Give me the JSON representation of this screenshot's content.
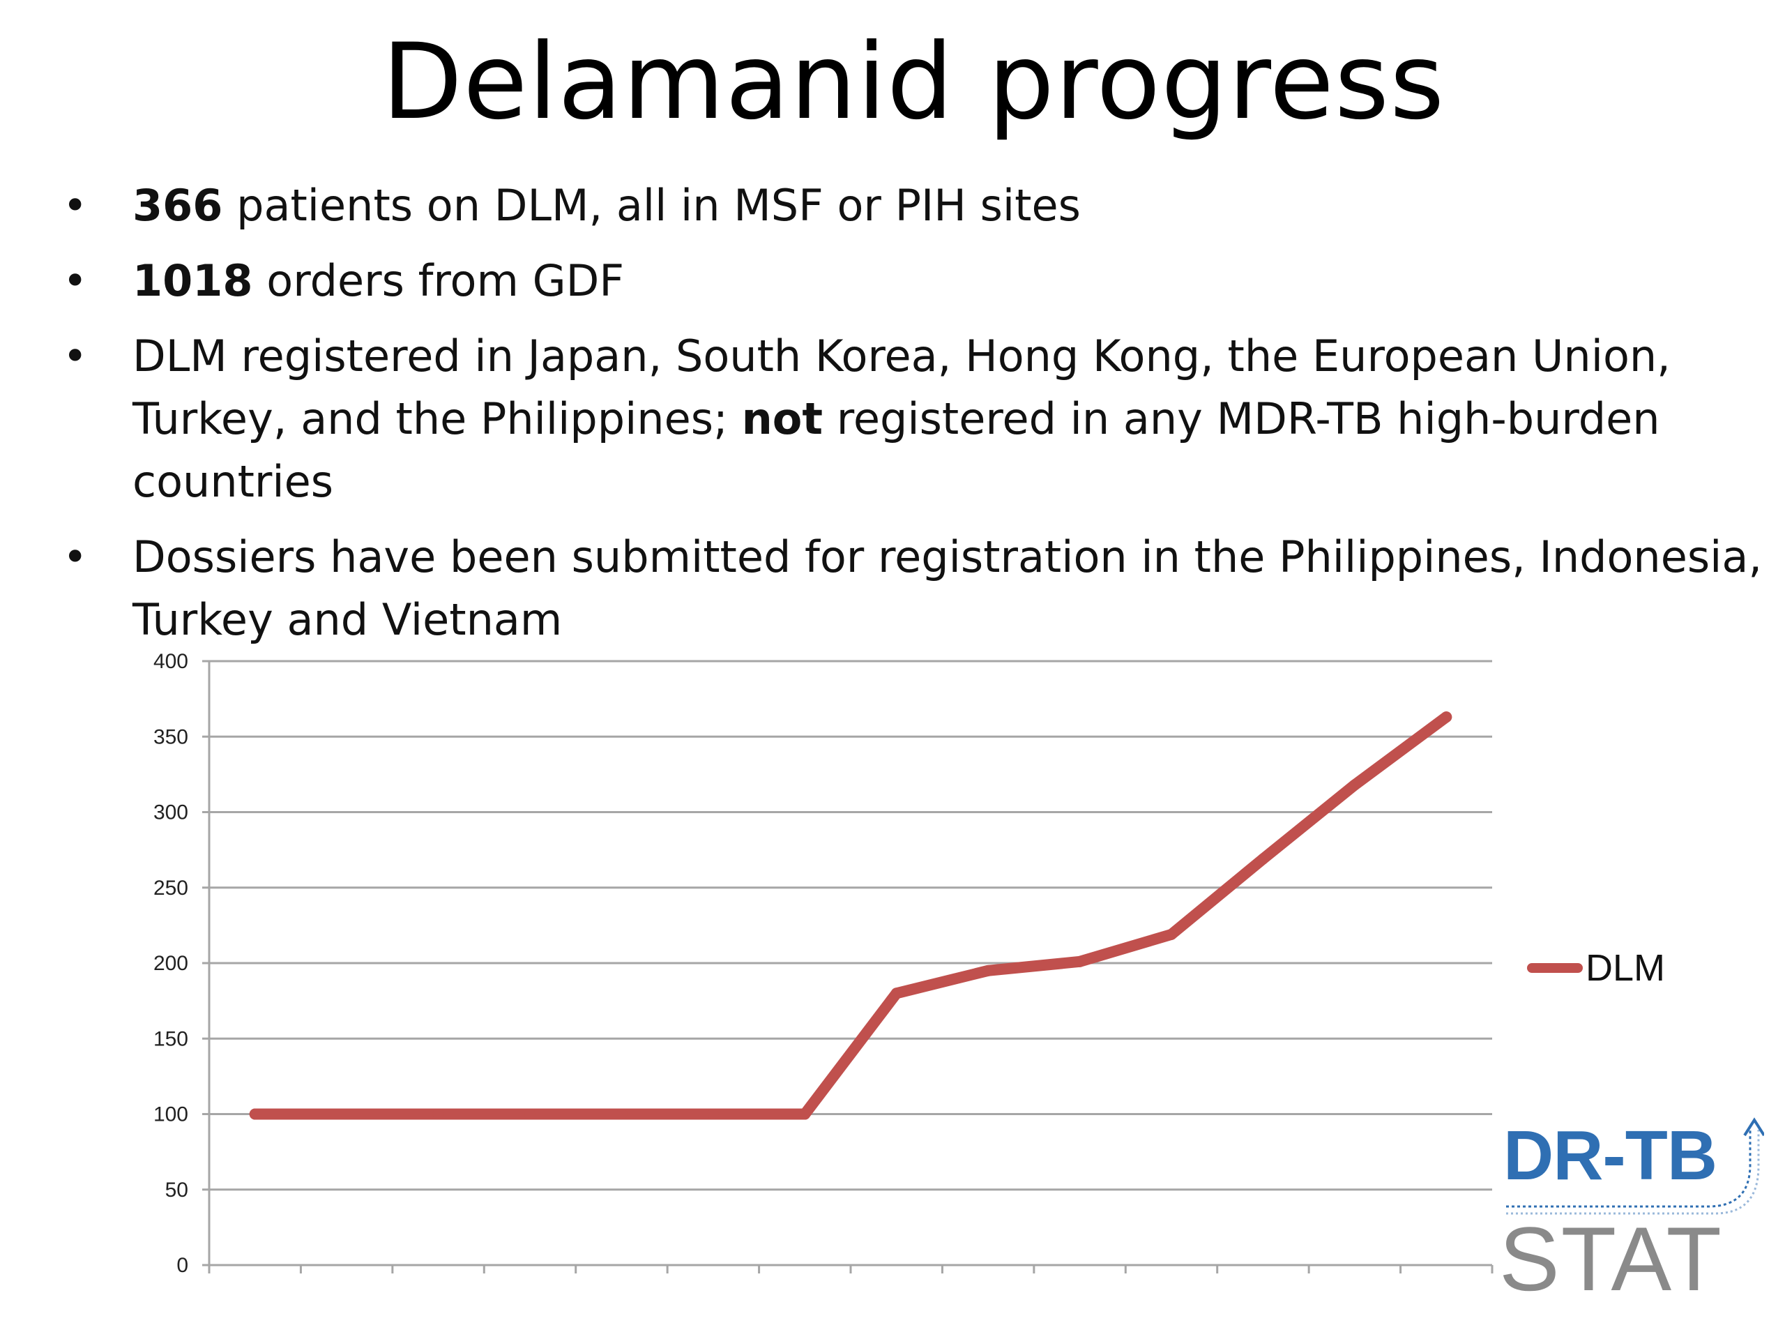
{
  "slide": {
    "title": "Delamanid progress",
    "bullets": [
      {
        "bold": "366",
        "text": " patients on DLM, all in MSF or PIH sites"
      },
      {
        "bold": "1018",
        "text": " orders from GDF"
      },
      {
        "pre": "DLM registered in Japan, South Korea, Hong Kong, the European Union, Turkey, and the Philippines; ",
        "bold": "not",
        "post": " registered in any MDR-TB high-burden countries"
      },
      {
        "text": "Dossiers have been submitted for registration in the Philippines, Indonesia, Turkey and Vietnam"
      }
    ]
  },
  "logo": {
    "line1": "DR-TB",
    "line2": "STAT"
  },
  "colors": {
    "series": "#c0504d",
    "grid": "#a6a6a6",
    "logo_blue": "#2f6fb3",
    "logo_gray": "#8a8a8a"
  },
  "chart_data": {
    "type": "line",
    "title": "",
    "xlabel": "",
    "ylabel": "",
    "ylim": [
      0,
      400
    ],
    "yticks": [
      "0",
      "50",
      "100",
      "150",
      "200",
      "250",
      "300",
      "350",
      "400"
    ],
    "x_category_count": 14,
    "grid": true,
    "legend_position": "right",
    "series": [
      {
        "name": "DLM",
        "values": [
          100,
          100,
          100,
          100,
          100,
          100,
          100,
          180,
          195,
          201,
          219,
          269,
          318,
          363
        ]
      }
    ]
  }
}
